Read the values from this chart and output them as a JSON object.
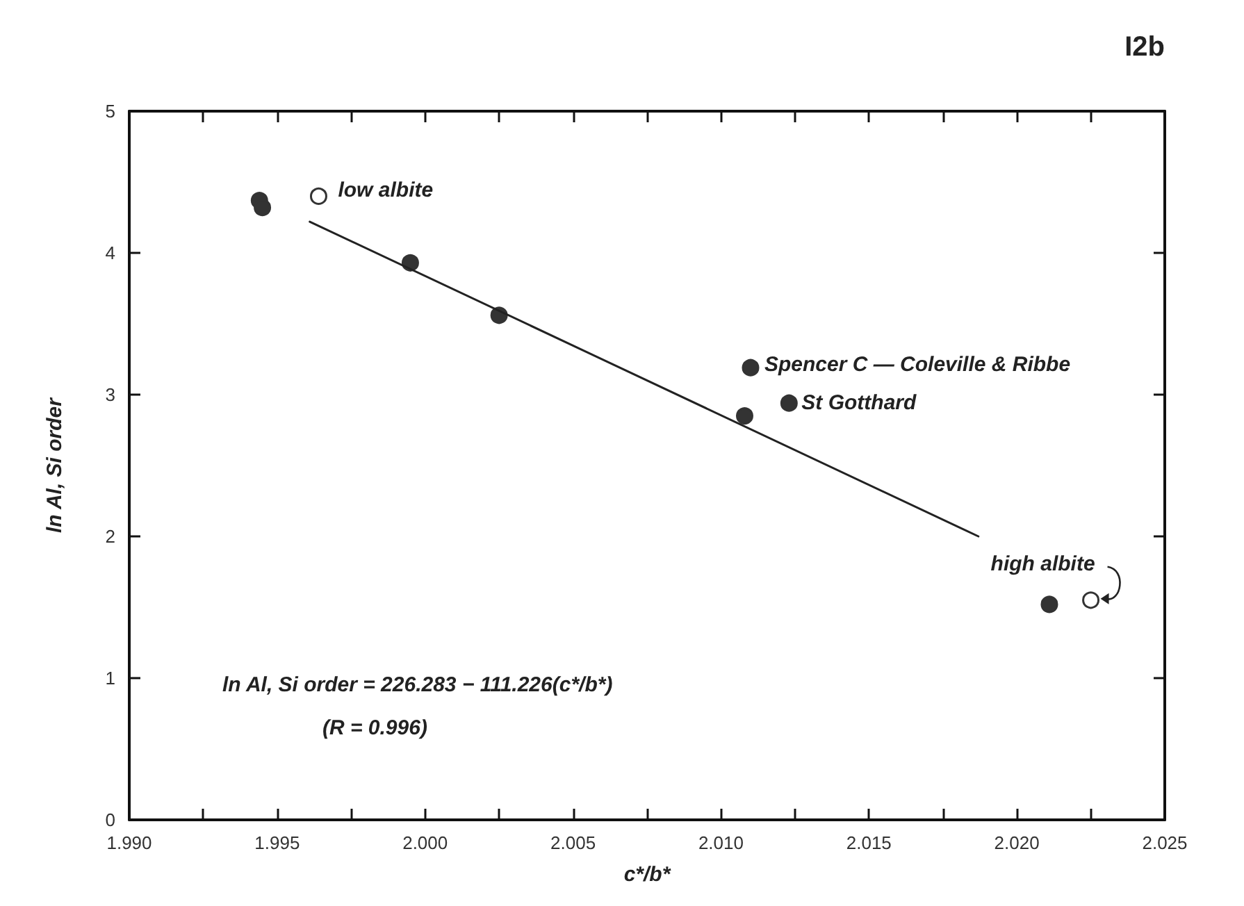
{
  "chart_data": {
    "type": "scatter",
    "xlabel": "c*/b*",
    "ylabel": "ln Al, Si order",
    "xlim": [
      1.99,
      2.025
    ],
    "ylim": [
      0,
      5
    ],
    "xticks": [
      {
        "value": 1.99,
        "label": "1.990"
      },
      {
        "value": 1.9925,
        "label": null
      },
      {
        "value": 1.995,
        "label": "1.995"
      },
      {
        "value": 1.9975,
        "label": null
      },
      {
        "value": 2.0,
        "label": "2.000"
      },
      {
        "value": 2.0025,
        "label": null
      },
      {
        "value": 2.005,
        "label": "2.005"
      },
      {
        "value": 2.0075,
        "label": null
      },
      {
        "value": 2.01,
        "label": "2.010"
      },
      {
        "value": 2.0125,
        "label": null
      },
      {
        "value": 2.015,
        "label": "2.015"
      },
      {
        "value": 2.0175,
        "label": null
      },
      {
        "value": 2.02,
        "label": "2.020"
      },
      {
        "value": 2.0225,
        "label": null
      },
      {
        "value": 2.025,
        "label": "2.025"
      }
    ],
    "yticks": [
      0,
      1,
      2,
      3,
      4,
      5
    ],
    "grid": false,
    "marker": "circle",
    "series": [
      {
        "color": "#333333",
        "x": [
          1.9944,
          1.9945,
          1.9995,
          2.0025,
          2.0108,
          2.011,
          2.0123,
          2.0211
        ],
        "values": [
          4.37,
          4.32,
          3.93,
          3.56,
          2.85,
          3.19,
          2.94,
          1.52
        ]
      },
      {
        "color": "#ffffff",
        "x": [
          1.9964,
          2.0225
        ],
        "values": [
          4.4,
          1.55
        ]
      },
      {
        "type": "line",
        "color": "#222222",
        "marker": "none",
        "line_style": "solid",
        "x": [
          1.9961,
          2.0187
        ],
        "values": [
          4.22,
          2.0
        ]
      }
    ],
    "annotations": [
      {
        "text": "low albite",
        "x": 1.9964,
        "y": 4.4
      },
      {
        "text": "Spencer C — Coleville & Ribbe",
        "x": 2.011,
        "y": 3.19
      },
      {
        "text": "St Gotthard",
        "x": 2.0123,
        "y": 2.94
      },
      {
        "text": "high albite",
        "x": 2.0225,
        "y": 1.55
      },
      "ln Al, Si order = 226.283 − 111.226(c*/b*)",
      "(R = 0.996)",
      "I2b"
    ]
  }
}
